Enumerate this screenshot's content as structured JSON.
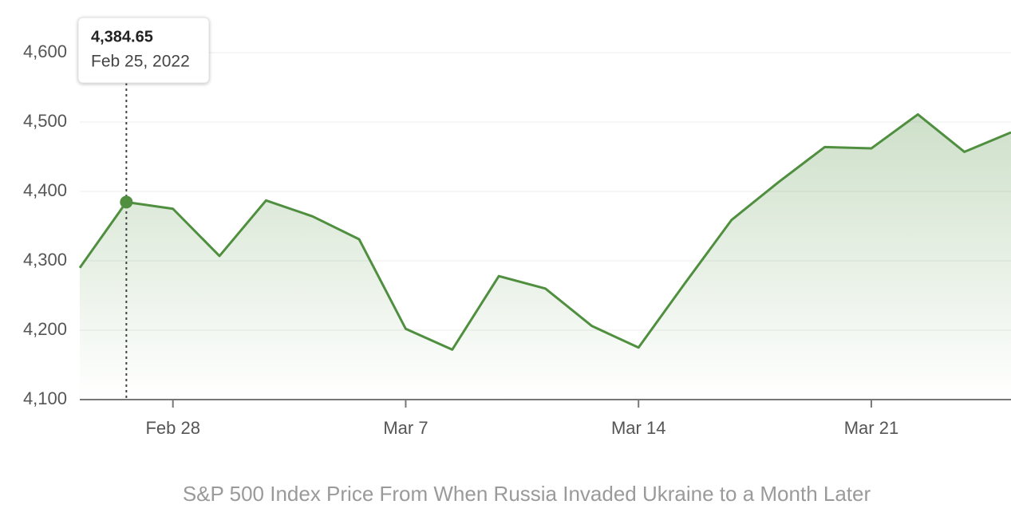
{
  "chart_data": {
    "type": "line",
    "caption": "S&P 500 Index Price From When Russia Invaded Ukraine to a Month Later",
    "categories": [
      null,
      null,
      "Feb 28",
      null,
      null,
      null,
      null,
      "Mar 7",
      null,
      null,
      null,
      null,
      "Mar 14",
      null,
      null,
      null,
      null,
      "Mar 21",
      null,
      null,
      null
    ],
    "series": [
      {
        "color": "#4f8f3f",
        "values": [
          4290,
          4384.65,
          4375,
          4307,
          4387,
          4364,
          4331,
          4202,
          4172,
          4278,
          4260,
          4206,
          4175,
          4268,
          4359,
          4413,
          4464,
          4462,
          4511,
          4457,
          4485
        ]
      }
    ],
    "ylim": [
      4100,
      4600
    ],
    "yticks": [
      {
        "value": 4100,
        "label": "4,100"
      },
      {
        "value": 4200,
        "label": "4,200"
      },
      {
        "value": 4300,
        "label": "4,300"
      },
      {
        "value": 4400,
        "label": "4,400"
      },
      {
        "value": 4500,
        "label": "4,500"
      },
      {
        "value": 4600,
        "label": "4,600"
      }
    ],
    "grid": true,
    "tooltip": {
      "index": 1,
      "value_label": "4,384.65",
      "date": "Feb 25, 2022"
    }
  }
}
